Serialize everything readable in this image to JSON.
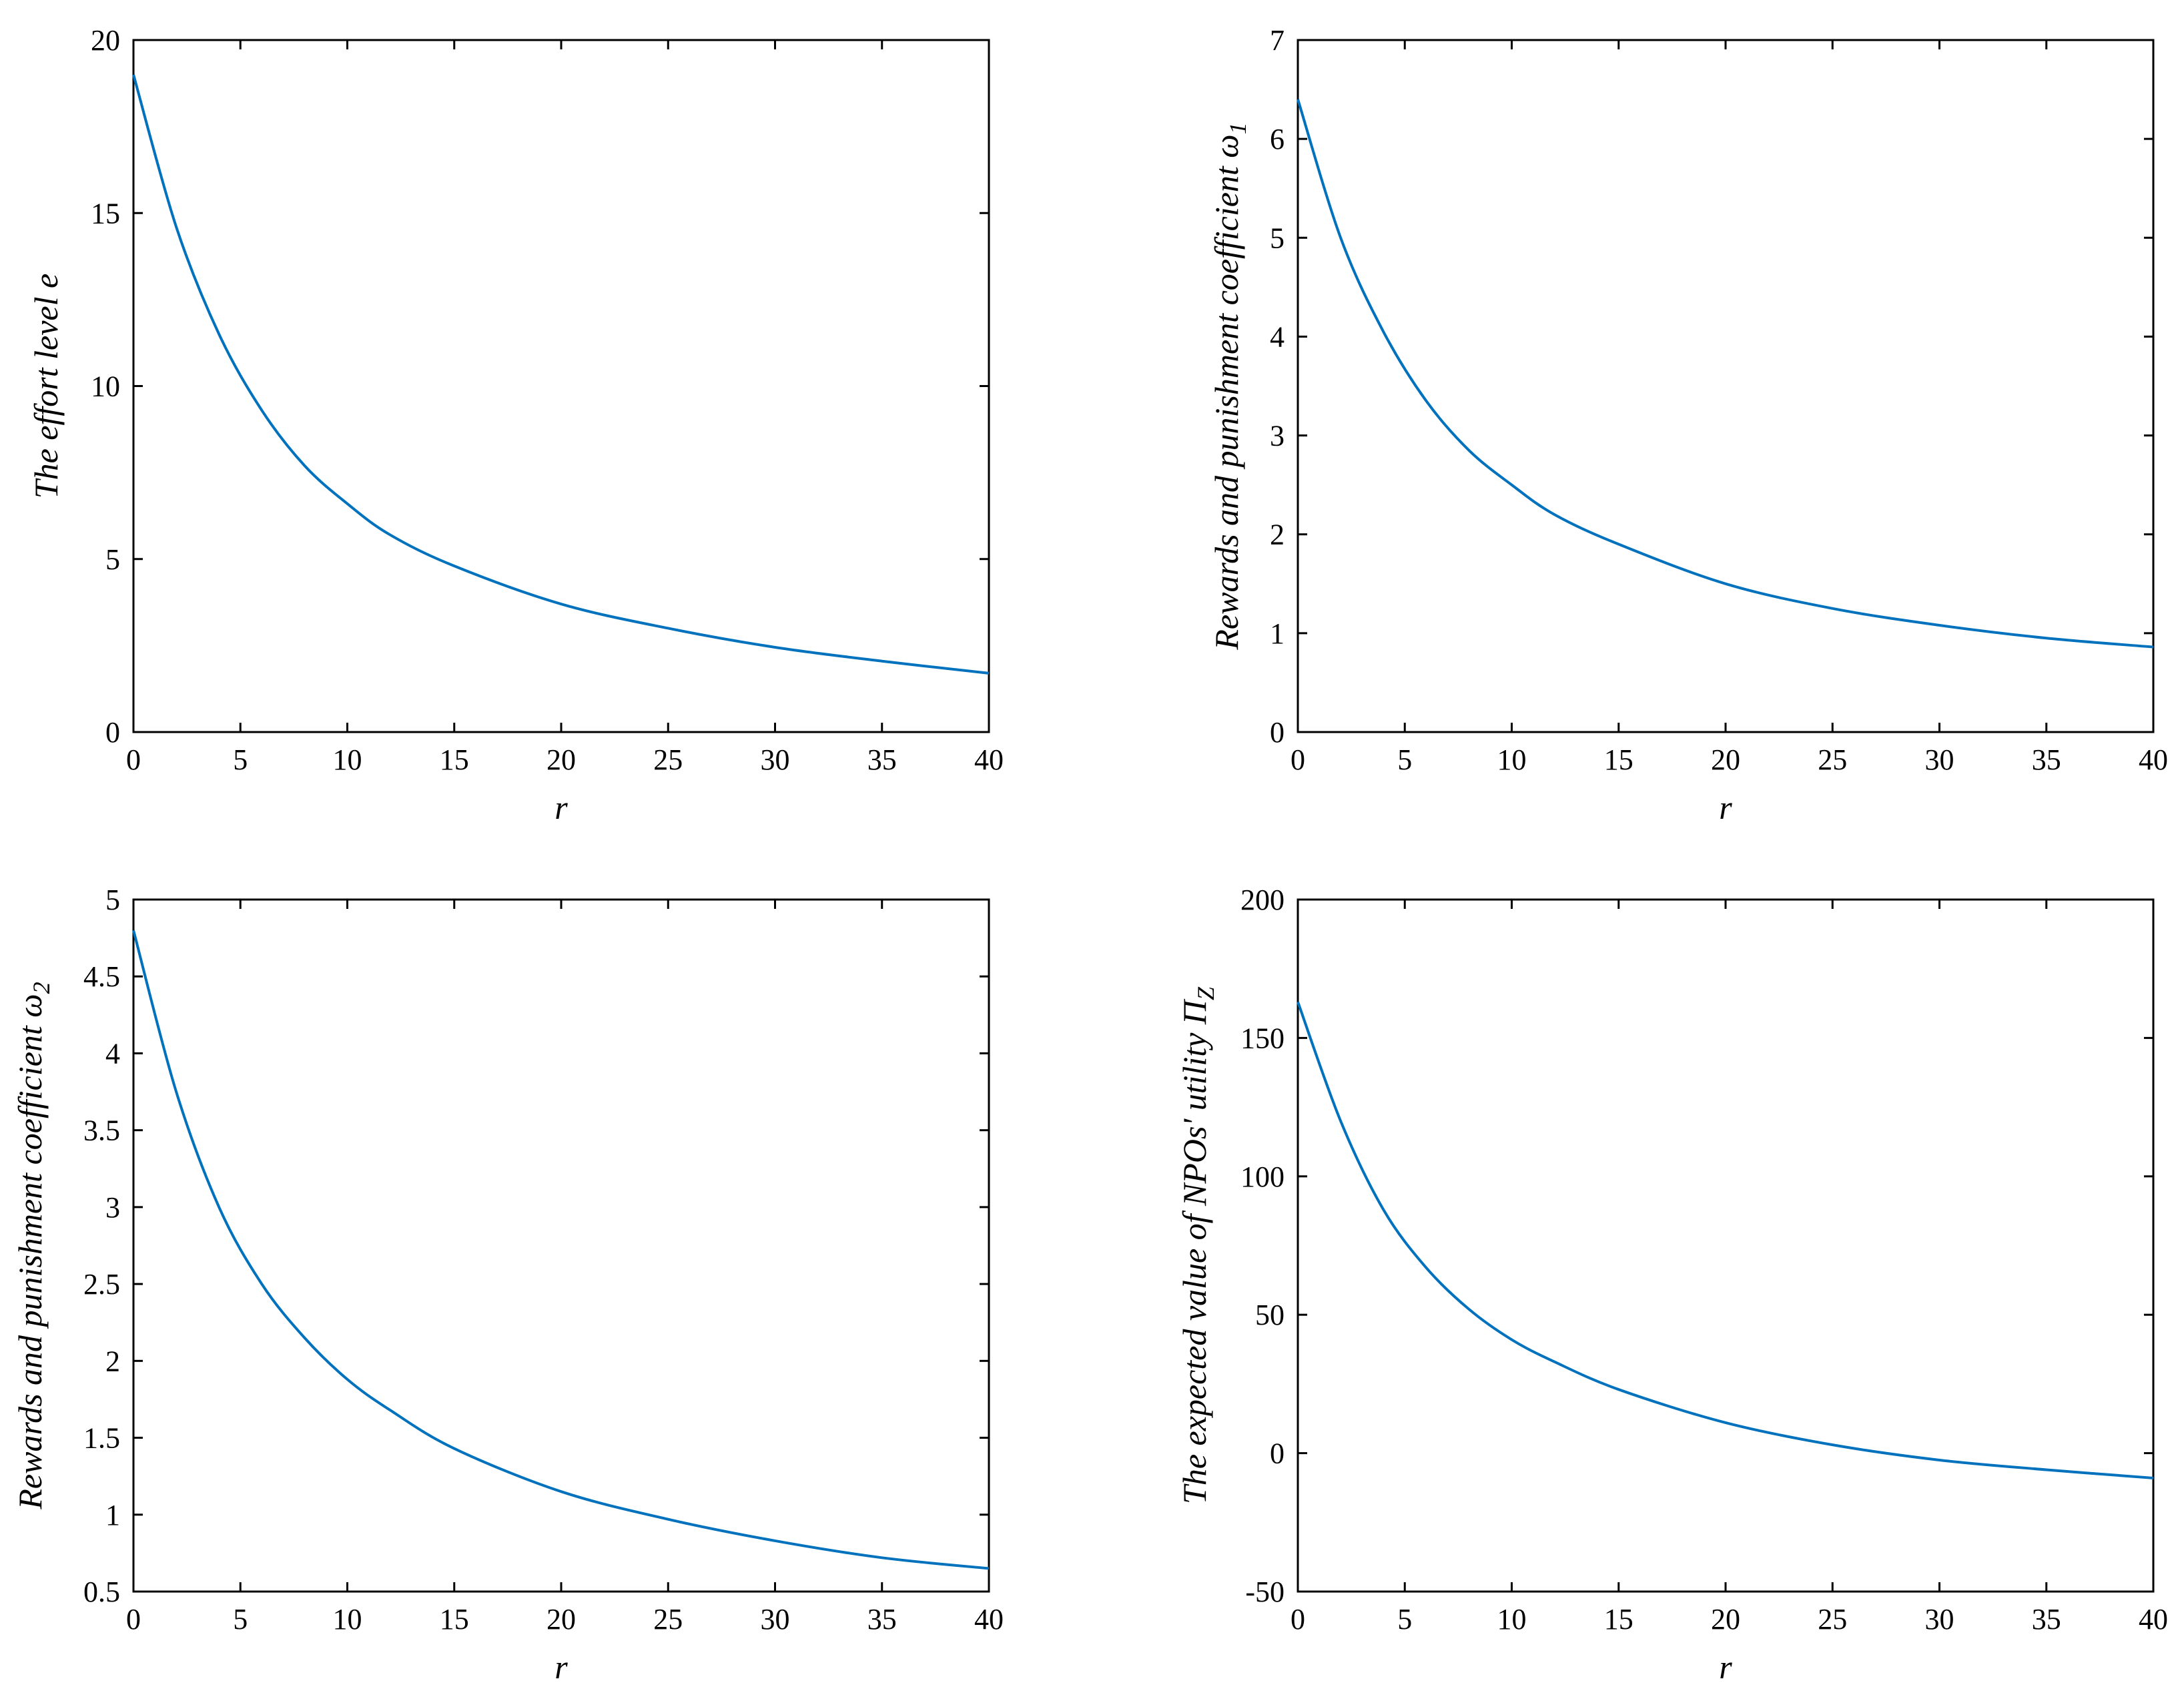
{
  "colors": {
    "series": "#0072BD",
    "axis": "#000000",
    "background": "#ffffff"
  },
  "chart_data": [
    {
      "type": "line",
      "xlabel": "r",
      "ylabel": {
        "main": "The effort level e",
        "sub": ""
      },
      "xlim": [
        0,
        40
      ],
      "ylim": [
        0,
        20
      ],
      "xticks": [
        "0",
        "5",
        "10",
        "15",
        "20",
        "25",
        "30",
        "35",
        "40"
      ],
      "yticks": [
        "0",
        "5",
        "10",
        "15",
        "20"
      ],
      "grid": false,
      "series": [
        {
          "x": [
            0,
            2,
            4,
            6,
            8,
            10,
            12,
            15,
            20,
            25,
            30,
            35,
            40
          ],
          "y": [
            19.0,
            14.6,
            11.5,
            9.3,
            7.7,
            6.6,
            5.7,
            4.8,
            3.7,
            3.0,
            2.45,
            2.05,
            1.7
          ]
        }
      ]
    },
    {
      "type": "line",
      "xlabel": "r",
      "ylabel": {
        "main": "Rewards and punishment coefficient ω",
        "sub": "1"
      },
      "xlim": [
        0,
        40
      ],
      "ylim": [
        0,
        7
      ],
      "xticks": [
        "0",
        "5",
        "10",
        "15",
        "20",
        "25",
        "30",
        "35",
        "40"
      ],
      "yticks": [
        "0",
        "1",
        "2",
        "3",
        "4",
        "5",
        "6",
        "7"
      ],
      "grid": false,
      "series": [
        {
          "x": [
            0,
            2,
            4,
            6,
            8,
            10,
            12,
            15,
            20,
            25,
            30,
            35,
            40
          ],
          "y": [
            6.4,
            5.0,
            4.05,
            3.35,
            2.85,
            2.5,
            2.2,
            1.9,
            1.5,
            1.25,
            1.08,
            0.95,
            0.86
          ]
        }
      ]
    },
    {
      "type": "line",
      "xlabel": "r",
      "ylabel": {
        "main": "Rewards and punishment coefficient ω",
        "sub": "2"
      },
      "xlim": [
        0,
        40
      ],
      "ylim": [
        0.5,
        5
      ],
      "xticks": [
        "0",
        "5",
        "10",
        "15",
        "20",
        "25",
        "30",
        "35",
        "40"
      ],
      "yticks": [
        "0.5",
        "1",
        "1.5",
        "2",
        "2.5",
        "3",
        "3.5",
        "4",
        "4.5",
        "5"
      ],
      "grid": false,
      "series": [
        {
          "x": [
            0,
            2,
            4,
            6,
            8,
            10,
            12,
            15,
            20,
            25,
            30,
            35,
            40
          ],
          "y": [
            4.8,
            3.75,
            3.0,
            2.5,
            2.15,
            1.88,
            1.68,
            1.43,
            1.15,
            0.97,
            0.83,
            0.72,
            0.65
          ]
        }
      ]
    },
    {
      "type": "line",
      "xlabel": "r",
      "ylabel": {
        "main": "The expected value of NPOs' utility Π",
        "sub": "Z"
      },
      "xlim": [
        0,
        40
      ],
      "ylim": [
        -50,
        200
      ],
      "xticks": [
        "0",
        "5",
        "10",
        "15",
        "20",
        "25",
        "30",
        "35",
        "40"
      ],
      "yticks": [
        "-50",
        "0",
        "50",
        "100",
        "150",
        "200"
      ],
      "grid": false,
      "series": [
        {
          "x": [
            0,
            2,
            4,
            6,
            8,
            10,
            12,
            15,
            20,
            25,
            30,
            35,
            40
          ],
          "y": [
            163,
            120,
            88,
            67,
            52,
            41,
            33,
            23,
            11,
            3,
            -2.5,
            -6,
            -9
          ]
        }
      ]
    }
  ]
}
